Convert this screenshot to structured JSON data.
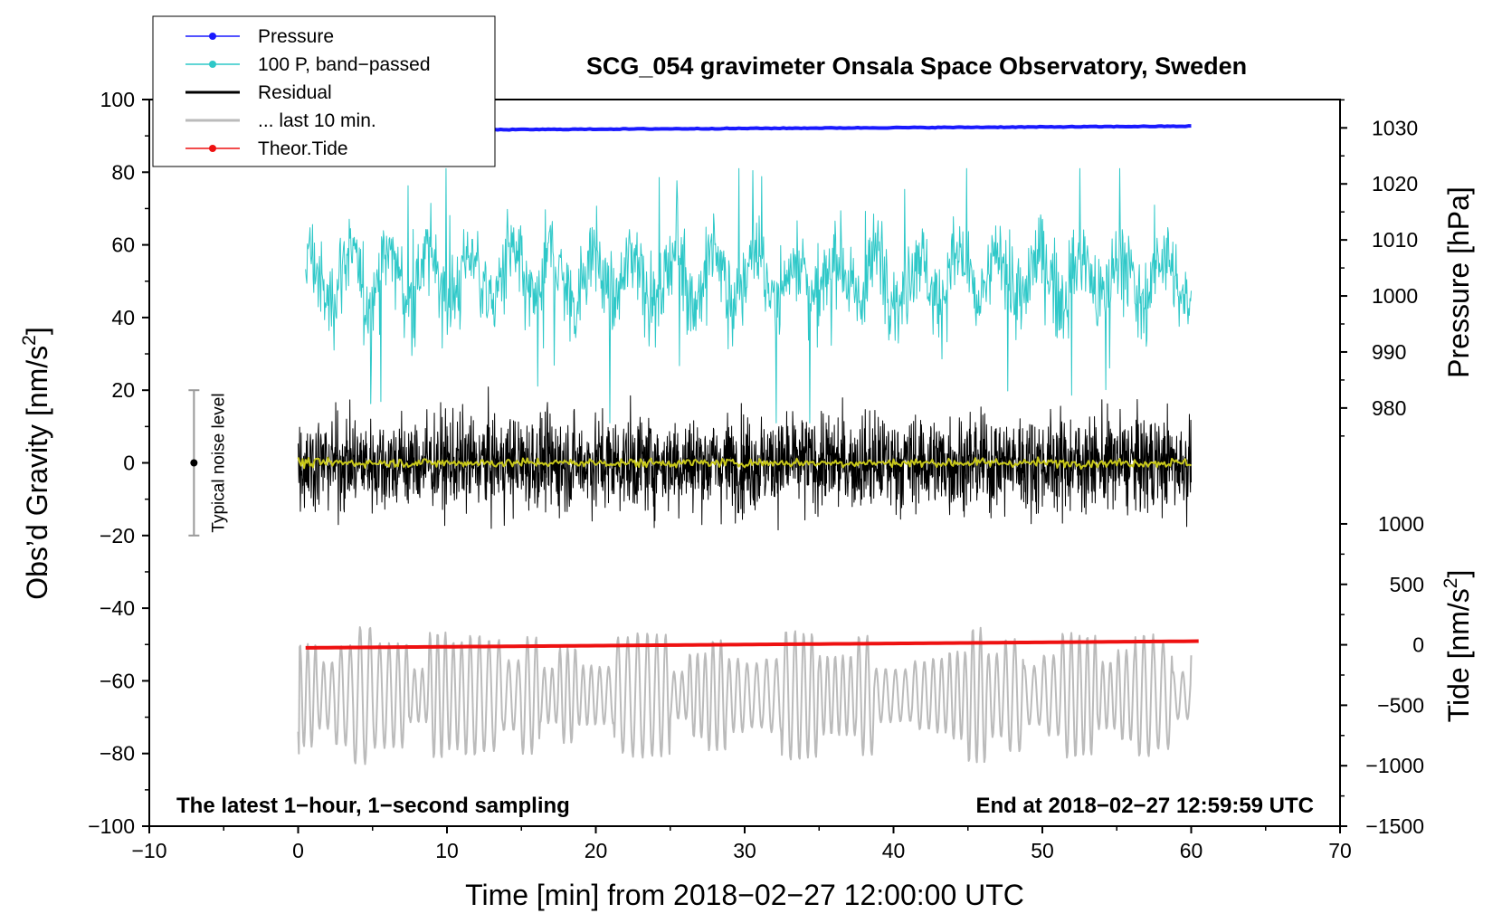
{
  "chart_data": {
    "type": "line",
    "title": "SCG_054 gravimeter Onsala Space Observatory, Sweden",
    "xlabel": "Time [min] from 2018−02−27 12:00:00 UTC",
    "ylabel_left_prefix": "Obs’d Gravity [nm/s",
    "ylabel_left_suffix": "]",
    "ylabel_right_pressure": "Pressure [hPa]",
    "ylabel_right_tide_prefix": "Tide [nm/s",
    "ylabel_right_tide_suffix": "]",
    "superscript_2": "2",
    "xlim": [
      -10,
      70
    ],
    "ylim_left": [
      -100,
      100
    ],
    "x_ticks": [
      -10,
      0,
      10,
      20,
      30,
      40,
      50,
      60,
      70
    ],
    "x_tick_labels": [
      "−10",
      "0",
      "10",
      "20",
      "30",
      "40",
      "50",
      "60",
      "70"
    ],
    "y_ticks_left": [
      -100,
      -80,
      -60,
      -40,
      -20,
      0,
      20,
      40,
      60,
      80,
      100
    ],
    "y_tick_labels_left": [
      "−100",
      "−80",
      "−60",
      "−40",
      "−20",
      "0",
      "20",
      "40",
      "60",
      "80",
      "100"
    ],
    "pressure_axis": {
      "ticks": [
        980,
        990,
        1000,
        1010,
        1020,
        1030
      ],
      "tick_labels": [
        "980",
        "990",
        "1000",
        "1010",
        "1020",
        "1030"
      ],
      "left_value_equiv": [
        [
          1030,
          92.2
        ],
        [
          980,
          15.1
        ]
      ]
    },
    "tide_axis": {
      "ticks": [
        -1500,
        -1000,
        -500,
        0,
        500,
        1000
      ],
      "tick_labels": [
        "−1500",
        "−1000",
        "−500",
        "0",
        "500",
        "1000"
      ],
      "left_value_equiv": [
        [
          -1500,
          -100
        ],
        [
          1000,
          -16.8
        ]
      ]
    },
    "legend": [
      {
        "label": "Pressure",
        "color": "#1a1aff",
        "marker": true
      },
      {
        "label": "100 P, band−passed",
        "color": "#2ec8c8",
        "marker": true
      },
      {
        "label": "Residual",
        "color": "#000000",
        "marker": false
      },
      {
        "label": "... last 10 min.",
        "color": "#bbbbbb",
        "marker": false
      },
      {
        "label": "Theor.Tide",
        "color": "#ee1111",
        "marker": true
      }
    ],
    "series": [
      {
        "name": "Pressure",
        "color": "#1a1aff",
        "x_range": [
          0,
          60
        ],
        "start_value": 1029.5,
        "end_value": 1030.3,
        "axis": "pressure"
      },
      {
        "name": "100 P, band−passed",
        "color": "#2ec8c8",
        "x_range": [
          0.5,
          60
        ],
        "mean_left": 51,
        "range_left": [
          11,
          81
        ]
      },
      {
        "name": "Residual",
        "color": "#000000",
        "x_range": [
          0,
          60
        ],
        "mean_left": 0,
        "range_left": [
          -24,
          26
        ]
      },
      {
        "name": "Residual smoothed",
        "color": "#c8c81a",
        "x_range": [
          0,
          60
        ],
        "mean_left": 0,
        "range_left": [
          -2,
          2
        ]
      },
      {
        "name": "... last 10 min.",
        "color": "#bbbbbb",
        "x_range": [
          0,
          60
        ],
        "mean_left": -64,
        "range_left": [
          -85,
          -39
        ]
      },
      {
        "name": "Theor.Tide",
        "color": "#ee1111",
        "x_range": [
          0.5,
          60.5
        ],
        "start_value": -25,
        "end_value": 30,
        "axis": "tide"
      }
    ],
    "noise_bar": {
      "label": "Typical noise level",
      "x": -7,
      "center": 0,
      "low": -20,
      "high": 20
    },
    "annotations": {
      "left": "The latest 1−hour, 1−second sampling",
      "right": "End at 2018−02−27 12:59:59 UTC"
    }
  }
}
